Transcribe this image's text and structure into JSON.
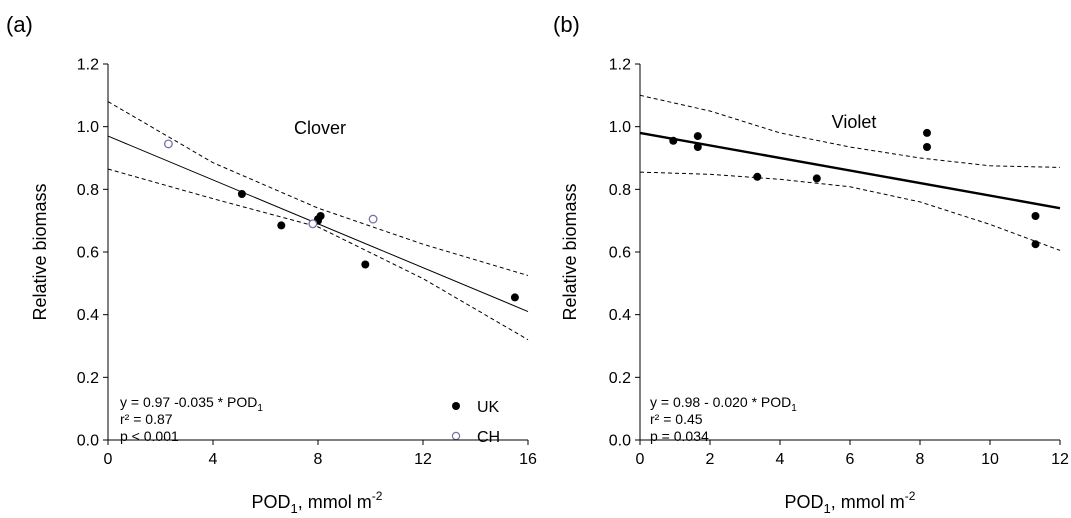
{
  "chart_data": [
    {
      "panel_label": "(a)",
      "title": "Clover",
      "type": "scatter",
      "xlabel": {
        "main": "POD",
        "sub": "1",
        "rest": ", mmol m",
        "sup": "-2"
      },
      "ylabel": "Relative biomass",
      "xlim": [
        0,
        16
      ],
      "ylim": [
        0,
        1.2
      ],
      "xticks": [
        "0",
        "4",
        "8",
        "12",
        "16"
      ],
      "xtick_values": [
        0,
        4,
        8,
        12,
        16
      ],
      "yticks": [
        "0.0",
        "0.2",
        "0.4",
        "0.6",
        "0.8",
        "1.0",
        "1.2"
      ],
      "ytick_values": [
        0,
        0.2,
        0.4,
        0.6,
        0.8,
        1.0,
        1.2
      ],
      "series": [
        {
          "name": "UK",
          "marker": "filled-circle",
          "color": "#000000",
          "x": [
            5.1,
            6.6,
            8.0,
            8.0,
            8.1,
            9.8,
            15.5
          ],
          "y": [
            0.785,
            0.685,
            0.7,
            0.705,
            0.715,
            0.56,
            0.455
          ]
        },
        {
          "name": "CH",
          "marker": "open-circle",
          "color": "#7e6fa0",
          "x": [
            2.3,
            7.8,
            10.1
          ],
          "y": [
            0.945,
            0.69,
            0.705
          ]
        }
      ],
      "fit": {
        "style": "solid-thin",
        "x": [
          0,
          16
        ],
        "y": [
          0.97,
          0.41
        ]
      },
      "ci_upper": {
        "x": [
          0,
          4,
          8,
          12,
          16
        ],
        "y": [
          1.08,
          0.885,
          0.74,
          0.625,
          0.525
        ]
      },
      "ci_lower": {
        "x": [
          0,
          4,
          8,
          12,
          16
        ],
        "y": [
          0.865,
          0.77,
          0.68,
          0.515,
          0.32
        ]
      },
      "stats": {
        "eq": {
          "main": "y = 0.97 -0.035 * POD",
          "sub": "1"
        },
        "r2": "r² = 0.87",
        "p": "p < 0.001"
      },
      "legend": [
        {
          "label": "UK",
          "marker": "filled-circle"
        },
        {
          "label": "CH",
          "marker": "open-circle"
        }
      ],
      "legend_position": "bottom-right"
    },
    {
      "panel_label": "(b)",
      "title": "Violet",
      "type": "scatter",
      "xlabel": {
        "main": "POD",
        "sub": "1",
        "rest": ", mmol m",
        "sup": "-2"
      },
      "ylabel": "Relative biomass",
      "xlim": [
        0,
        12
      ],
      "ylim": [
        0,
        1.2
      ],
      "xticks": [
        "0",
        "2",
        "4",
        "6",
        "8",
        "10",
        "12"
      ],
      "xtick_values": [
        0,
        2,
        4,
        6,
        8,
        10,
        12
      ],
      "yticks": [
        "0.0",
        "0.2",
        "0.4",
        "0.6",
        "0.8",
        "1.0",
        "1.2"
      ],
      "ytick_values": [
        0,
        0.2,
        0.4,
        0.6,
        0.8,
        1.0,
        1.2
      ],
      "series": [
        {
          "marker": "filled-circle",
          "color": "#000000",
          "x": [
            0.95,
            1.65,
            1.65,
            3.35,
            5.05,
            8.2,
            8.2,
            11.3,
            11.3
          ],
          "y": [
            0.955,
            0.97,
            0.935,
            0.84,
            0.835,
            0.98,
            0.935,
            0.715,
            0.625
          ]
        }
      ],
      "fit": {
        "style": "solid-thick",
        "x": [
          0,
          12
        ],
        "y": [
          0.98,
          0.74
        ]
      },
      "ci_upper": {
        "x": [
          0,
          2,
          4,
          6,
          8,
          10,
          12
        ],
        "y": [
          1.1,
          1.05,
          0.98,
          0.935,
          0.9,
          0.875,
          0.87
        ]
      },
      "ci_lower": {
        "x": [
          0,
          2,
          4,
          6,
          8,
          10,
          12
        ],
        "y": [
          0.855,
          0.848,
          0.832,
          0.808,
          0.76,
          0.688,
          0.605
        ]
      },
      "stats": {
        "eq": {
          "main": "y = 0.98 - 0.020 * POD",
          "sub": "1"
        },
        "r2": "r² = 0.45",
        "p": "p = 0.034"
      },
      "legend": [],
      "legend_position": "none"
    }
  ]
}
